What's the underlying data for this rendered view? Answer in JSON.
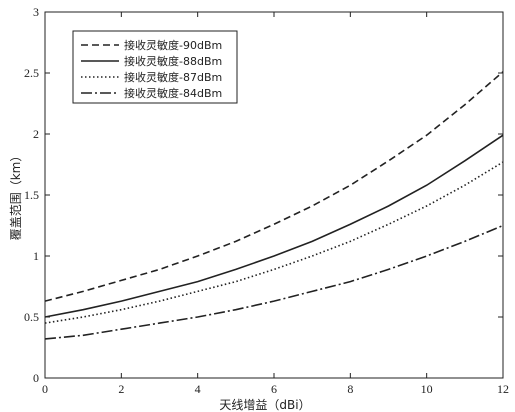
{
  "chart_data": {
    "type": "line",
    "title": "",
    "xlabel": "天线增益（dBi）",
    "ylabel": "覆盖范围（km）",
    "xlim": [
      0,
      12
    ],
    "ylim": [
      0,
      3
    ],
    "xticks": [
      0,
      2,
      4,
      6,
      8,
      10,
      12
    ],
    "yticks": [
      0,
      0.5,
      1,
      1.5,
      2,
      2.5,
      3
    ],
    "xtick_labels": [
      "0",
      "2",
      "4",
      "6",
      "8",
      "10",
      "12"
    ],
    "ytick_labels": [
      "0",
      "0.5",
      "1",
      "1.5",
      "2",
      "2.5",
      "3"
    ],
    "grid": false,
    "legend_position": "top-left",
    "x": [
      0,
      1,
      2,
      3,
      4,
      5,
      6,
      7,
      8,
      9,
      10,
      11,
      12
    ],
    "series": [
      {
        "name": "接收灵敏度-90dBm",
        "style": "dashed",
        "values": [
          0.63,
          0.71,
          0.8,
          0.89,
          1.0,
          1.12,
          1.26,
          1.41,
          1.58,
          1.78,
          1.99,
          2.24,
          2.51
        ]
      },
      {
        "name": "接收灵敏度-88dBm",
        "style": "solid",
        "values": [
          0.5,
          0.56,
          0.63,
          0.71,
          0.79,
          0.89,
          1.0,
          1.12,
          1.26,
          1.41,
          1.58,
          1.78,
          1.99
        ]
      },
      {
        "name": "接收灵敏度-87dBm",
        "style": "dotted",
        "values": [
          0.45,
          0.5,
          0.56,
          0.63,
          0.71,
          0.79,
          0.89,
          1.0,
          1.12,
          1.26,
          1.41,
          1.58,
          1.77
        ]
      },
      {
        "name": "接收灵敏度-84dBm",
        "style": "dashdot",
        "values": [
          0.32,
          0.35,
          0.4,
          0.45,
          0.5,
          0.56,
          0.63,
          0.71,
          0.79,
          0.89,
          1.0,
          1.12,
          1.25
        ]
      }
    ]
  }
}
